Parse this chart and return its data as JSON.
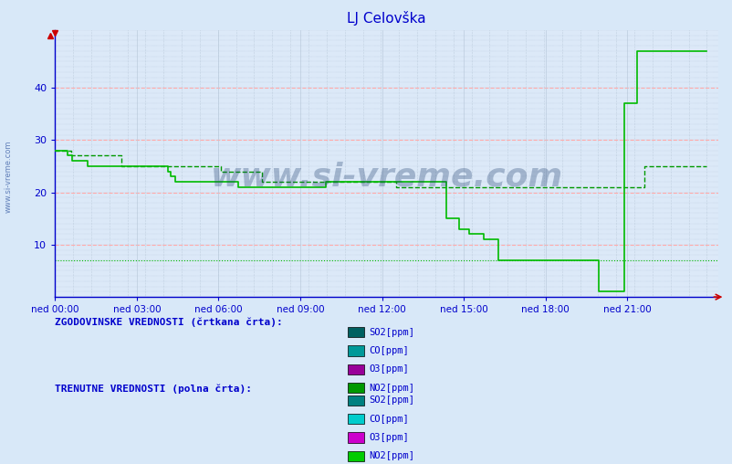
{
  "title": "LJ Celovška",
  "title_color": "#0000cc",
  "bg_color": "#d8e8f8",
  "plot_bg_color": "#dce9f8",
  "axis_color": "#0000cc",
  "tick_color": "#0000cc",
  "grid_color_major": "#ffaaaa",
  "grid_color_minor": "#bbccdd",
  "grid_color_dot": "#aabbcc",
  "xmin": 0,
  "xmax": 287,
  "ymin": 0,
  "ymax": 50,
  "yticks": [
    10,
    20,
    30,
    40
  ],
  "xtick_labels": [
    "ned 00:00",
    "ned 03:00",
    "ned 06:00",
    "ned 09:00",
    "ned 12:00",
    "ned 15:00",
    "ned 18:00",
    "ned 21:00"
  ],
  "xtick_positions": [
    0,
    36,
    72,
    108,
    144,
    180,
    216,
    252
  ],
  "watermark_text": "www.si-vreme.com",
  "watermark_color": "#1a3a6b",
  "watermark_alpha": 0.3,
  "legend_hist_title": "ZGODOVINSKE VREDNOSTI (črtkana črta):",
  "legend_curr_title": "TRENUTNE VREDNOSTI (polna črta):",
  "legend_items": [
    "SO2[ppm]",
    "CO[ppm]",
    "O3[ppm]",
    "NO2[ppm]"
  ],
  "legend_colors_hist": [
    "#006060",
    "#009999",
    "#990099",
    "#009900"
  ],
  "legend_colors_curr": [
    "#008080",
    "#00cccc",
    "#cc00cc",
    "#00cc00"
  ],
  "sidebar_text": "www.si-vreme.com",
  "sidebar_color": "#4466aa",
  "no2_hist_color": "#009900",
  "no2_curr_color": "#00bb00",
  "baseline_y": 7,
  "no2_hist": [
    28,
    28,
    28,
    28,
    28,
    28,
    28,
    27,
    27,
    27,
    27,
    27,
    27,
    27,
    27,
    27,
    27,
    27,
    27,
    27,
    27,
    27,
    27,
    27,
    27,
    27,
    27,
    27,
    27,
    25,
    25,
    25,
    25,
    25,
    25,
    25,
    25,
    25,
    25,
    25,
    25,
    25,
    25,
    25,
    25,
    25,
    25,
    25,
    25,
    25,
    25,
    25,
    25,
    25,
    25,
    25,
    25,
    25,
    25,
    25,
    25,
    25,
    25,
    25,
    25,
    25,
    25,
    25,
    25,
    25,
    25,
    25,
    24,
    24,
    24,
    24,
    24,
    24,
    24,
    24,
    24,
    24,
    24,
    24,
    24,
    24,
    24,
    24,
    24,
    24,
    22,
    22,
    22,
    22,
    22,
    22,
    22,
    22,
    22,
    22,
    22,
    22,
    22,
    22,
    22,
    22,
    22,
    22,
    22,
    22,
    22,
    22,
    22,
    22,
    22,
    22,
    22,
    22,
    22,
    22,
    22,
    22,
    22,
    22,
    22,
    22,
    22,
    22,
    22,
    22,
    22,
    22,
    22,
    22,
    22,
    22,
    22,
    22,
    22,
    22,
    22,
    22,
    22,
    22,
    22,
    22,
    22,
    22,
    21,
    21,
    21,
    21,
    21,
    21,
    21,
    21,
    21,
    21,
    21,
    21,
    21,
    21,
    21,
    21,
    21,
    21,
    21,
    21,
    21,
    21,
    21,
    21,
    21,
    21,
    21,
    21,
    21,
    21,
    21,
    21,
    21,
    21,
    21,
    21,
    21,
    21,
    21,
    21,
    21,
    21,
    21,
    21,
    21,
    21,
    21,
    21,
    21,
    21,
    21,
    21,
    21,
    21,
    21,
    21,
    21,
    21,
    21,
    21,
    21,
    21,
    21,
    21,
    21,
    21,
    21,
    21,
    21,
    21,
    21,
    21,
    21,
    21,
    21,
    21,
    21,
    21,
    21,
    21,
    21,
    21,
    21,
    21,
    21,
    21,
    21,
    21,
    21,
    21,
    21,
    21,
    21,
    21,
    21,
    21,
    21,
    21,
    21,
    21,
    21,
    21,
    21,
    21,
    21,
    21,
    21,
    21,
    25,
    25,
    25,
    25,
    25,
    25,
    25,
    25,
    25,
    25,
    25,
    25,
    25,
    25,
    25,
    25,
    25,
    25,
    25,
    25,
    25,
    25,
    25,
    25,
    25,
    25,
    25,
    25
  ],
  "no2_curr": [
    28,
    28,
    28,
    28,
    28,
    27,
    27,
    26,
    26,
    26,
    26,
    26,
    26,
    25,
    25,
    25,
    25,
    25,
    25,
    25,
    25,
    25,
    25,
    25,
    25,
    25,
    25,
    25,
    25,
    25,
    25,
    25,
    25,
    25,
    25,
    25,
    25,
    25,
    25,
    25,
    25,
    25,
    25,
    25,
    25,
    24,
    23,
    23,
    22,
    22,
    22,
    22,
    22,
    22,
    22,
    22,
    22,
    22,
    22,
    22,
    22,
    22,
    22,
    22,
    22,
    22,
    22,
    22,
    22,
    22,
    22,
    22,
    22,
    21,
    21,
    21,
    21,
    21,
    21,
    21,
    21,
    21,
    21,
    21,
    21,
    21,
    21,
    21,
    21,
    21,
    21,
    21,
    21,
    21,
    21,
    21,
    21,
    21,
    21,
    21,
    21,
    21,
    21,
    21,
    21,
    21,
    21,
    21,
    22,
    22,
    22,
    22,
    22,
    22,
    22,
    22,
    22,
    22,
    22,
    22,
    22,
    22,
    22,
    22,
    22,
    22,
    22,
    22,
    22,
    22,
    22,
    22,
    22,
    22,
    22,
    22,
    22,
    22,
    22,
    22,
    22,
    22,
    22,
    22,
    22,
    22,
    22,
    22,
    22,
    22,
    22,
    22,
    22,
    22,
    22,
    22,
    15,
    15,
    15,
    15,
    15,
    13,
    13,
    13,
    13,
    12,
    12,
    12,
    12,
    12,
    12,
    11,
    11,
    11,
    11,
    11,
    11,
    7,
    7,
    7,
    7,
    7,
    7,
    7,
    7,
    7,
    7,
    7,
    7,
    7,
    7,
    7,
    7,
    7,
    7,
    7,
    7,
    7,
    7,
    7,
    7,
    7,
    7,
    7,
    7,
    7,
    7,
    7,
    7,
    7,
    7,
    7,
    7,
    7,
    7,
    7,
    7,
    1,
    1,
    1,
    1,
    1,
    1,
    1,
    1,
    1,
    1,
    37,
    37,
    37,
    37,
    37,
    47,
    47,
    47,
    47,
    47,
    47,
    47,
    47,
    47,
    47,
    47,
    47,
    47,
    47,
    47,
    47,
    47,
    47,
    47,
    47,
    47,
    47,
    47,
    47,
    47,
    47,
    47,
    47,
    47
  ]
}
